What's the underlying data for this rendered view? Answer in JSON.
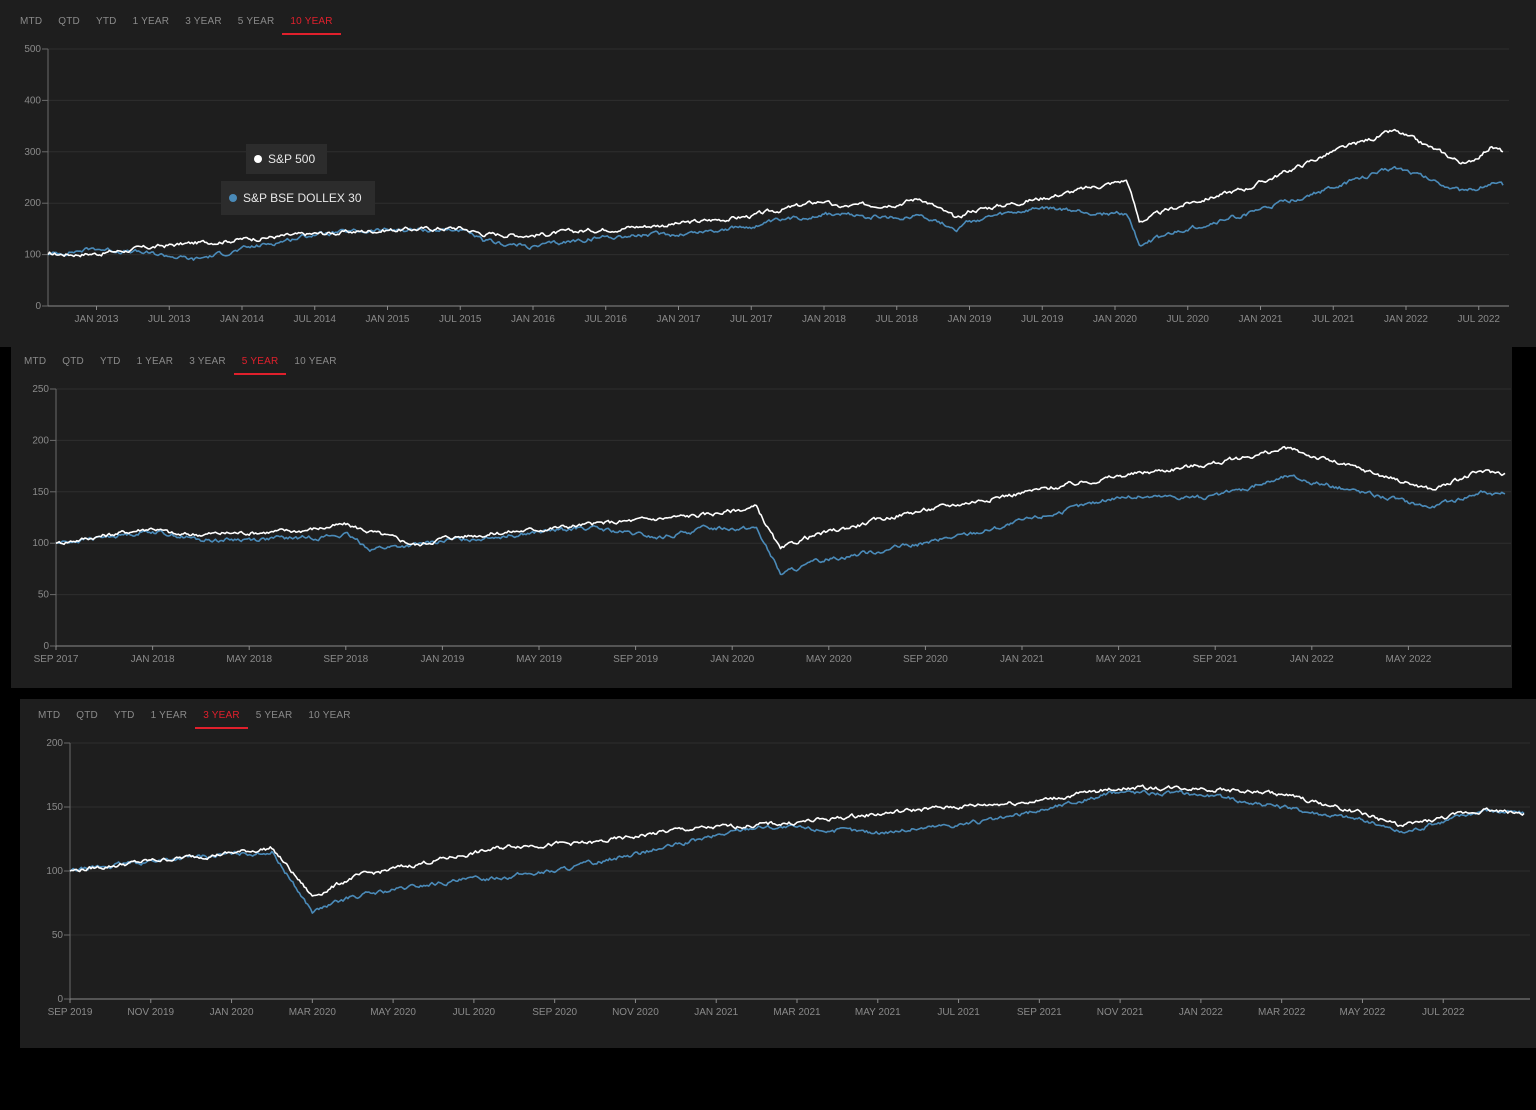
{
  "tabs": [
    "MTD",
    "QTD",
    "YTD",
    "1 YEAR",
    "3 YEAR",
    "5 YEAR",
    "10 YEAR"
  ],
  "colors": {
    "sp500": "#ffffff",
    "dollex": "#4a8ab8",
    "accent": "#e0202c",
    "grid": "#2f2f2f",
    "tick": "#8a8a8a"
  },
  "chart_data": [
    {
      "type": "line",
      "active_tab": "10 YEAR",
      "legend": "inline",
      "legend_items": [
        "S&P 500",
        "S&P BSE DOLLEX 30"
      ],
      "yticks": [
        0,
        100,
        200,
        300,
        400,
        500
      ],
      "ylim": [
        0,
        500
      ],
      "xlim": [
        "2012-09",
        "2022-09"
      ],
      "xticks": [
        "JAN 2013",
        "JUL 2013",
        "JAN 2014",
        "JUL 2014",
        "JAN 2015",
        "JUL 2015",
        "JAN 2016",
        "JUL 2016",
        "JAN 2017",
        "JUL 2017",
        "JAN 2018",
        "JUL 2018",
        "JAN 2019",
        "JUL 2019",
        "JAN 2020",
        "JUL 2020",
        "JAN 2021",
        "JUL 2021",
        "JAN 2022",
        "JUL 2022"
      ],
      "series": [
        {
          "name": "S&P 500",
          "color": "#ffffff",
          "points": [
            [
              "2012-09",
              100
            ],
            [
              "2013-01",
              102
            ],
            [
              "2013-07",
              118
            ],
            [
              "2014-01",
              130
            ],
            [
              "2014-07",
              140
            ],
            [
              "2015-01",
              148
            ],
            [
              "2015-07",
              152
            ],
            [
              "2015-09",
              140
            ],
            [
              "2016-01",
              138
            ],
            [
              "2016-07",
              150
            ],
            [
              "2017-01",
              160
            ],
            [
              "2017-07",
              175
            ],
            [
              "2018-01",
              205
            ],
            [
              "2018-02",
              192
            ],
            [
              "2018-07",
              200
            ],
            [
              "2018-09",
              210
            ],
            [
              "2018-12",
              168
            ],
            [
              "2019-01",
              185
            ],
            [
              "2019-07",
              210
            ],
            [
              "2019-12",
              235
            ],
            [
              "2020-02",
              245
            ],
            [
              "2020-03",
              165
            ],
            [
              "2020-07",
              200
            ],
            [
              "2020-12",
              230
            ],
            [
              "2021-07",
              300
            ],
            [
              "2021-12",
              340
            ],
            [
              "2022-01",
              330
            ],
            [
              "2022-06",
              275
            ],
            [
              "2022-08",
              310
            ],
            [
              "2022-09",
              300
            ]
          ]
        },
        {
          "name": "S&P BSE DOLLEX 30",
          "color": "#4a8ab8",
          "points": [
            [
              "2012-09",
              100
            ],
            [
              "2013-01",
              112
            ],
            [
              "2013-07",
              98
            ],
            [
              "2013-09",
              90
            ],
            [
              "2014-01",
              110
            ],
            [
              "2014-07",
              140
            ],
            [
              "2015-01",
              148
            ],
            [
              "2015-07",
              148
            ],
            [
              "2015-09",
              125
            ],
            [
              "2016-01",
              115
            ],
            [
              "2016-07",
              135
            ],
            [
              "2017-01",
              140
            ],
            [
              "2017-07",
              155
            ],
            [
              "2018-01",
              180
            ],
            [
              "2018-07",
              170
            ],
            [
              "2018-09",
              178
            ],
            [
              "2018-12",
              150
            ],
            [
              "2019-01",
              165
            ],
            [
              "2019-07",
              190
            ],
            [
              "2019-12",
              180
            ],
            [
              "2020-02",
              180
            ],
            [
              "2020-03",
              120
            ],
            [
              "2020-07",
              150
            ],
            [
              "2020-12",
              180
            ],
            [
              "2021-07",
              230
            ],
            [
              "2021-12",
              270
            ],
            [
              "2022-01",
              265
            ],
            [
              "2022-06",
              220
            ],
            [
              "2022-08",
              240
            ],
            [
              "2022-09",
              235
            ]
          ]
        }
      ]
    },
    {
      "type": "line",
      "active_tab": "5 YEAR",
      "yticks": [
        0,
        50,
        100,
        150,
        200,
        250
      ],
      "ylim": [
        0,
        250
      ],
      "xlim": [
        "2017-09",
        "2022-09"
      ],
      "xticks": [
        "SEP 2017",
        "JAN 2018",
        "MAY 2018",
        "SEP 2018",
        "JAN 2019",
        "MAY 2019",
        "SEP 2019",
        "JAN 2020",
        "MAY 2020",
        "SEP 2020",
        "JAN 2021",
        "MAY 2021",
        "SEP 2021",
        "JAN 2022",
        "MAY 2022"
      ],
      "series": [
        {
          "name": "S&P 500",
          "color": "#ffffff",
          "points": [
            [
              "2017-09",
              100
            ],
            [
              "2018-01",
              115
            ],
            [
              "2018-02",
              108
            ],
            [
              "2018-07",
              112
            ],
            [
              "2018-09",
              118
            ],
            [
              "2018-12",
              98
            ],
            [
              "2019-01",
              105
            ],
            [
              "2019-07",
              118
            ],
            [
              "2019-12",
              128
            ],
            [
              "2020-02",
              135
            ],
            [
              "2020-03",
              93
            ],
            [
              "2020-04",
              105
            ],
            [
              "2020-08",
              128
            ],
            [
              "2020-12",
              145
            ],
            [
              "2021-05",
              165
            ],
            [
              "2021-09",
              178
            ],
            [
              "2021-12",
              192
            ],
            [
              "2022-01",
              185
            ],
            [
              "2022-06",
              152
            ],
            [
              "2022-08",
              170
            ],
            [
              "2022-09",
              168
            ]
          ]
        },
        {
          "name": "S&P BSE DOLLEX 30",
          "color": "#4a8ab8",
          "points": [
            [
              "2017-09",
              100
            ],
            [
              "2018-01",
              112
            ],
            [
              "2018-03",
              103
            ],
            [
              "2018-07",
              105
            ],
            [
              "2018-09",
              108
            ],
            [
              "2018-10",
              95
            ],
            [
              "2018-12",
              98
            ],
            [
              "2019-01",
              102
            ],
            [
              "2019-07",
              115
            ],
            [
              "2019-10",
              105
            ],
            [
              "2019-12",
              115
            ],
            [
              "2020-02",
              115
            ],
            [
              "2020-03",
              70
            ],
            [
              "2020-05",
              85
            ],
            [
              "2020-09",
              100
            ],
            [
              "2020-12",
              115
            ],
            [
              "2021-05",
              145
            ],
            [
              "2021-09",
              145
            ],
            [
              "2021-12",
              165
            ],
            [
              "2022-01",
              160
            ],
            [
              "2022-06",
              135
            ],
            [
              "2022-08",
              150
            ],
            [
              "2022-09",
              148
            ]
          ]
        }
      ]
    },
    {
      "type": "line",
      "active_tab": "3 YEAR",
      "yticks": [
        0,
        50,
        100,
        150,
        200
      ],
      "ylim": [
        0,
        200
      ],
      "xlim": [
        "2019-09",
        "2022-09"
      ],
      "xticks": [
        "SEP 2019",
        "NOV 2019",
        "JAN 2020",
        "MAR 2020",
        "MAY 2020",
        "JUL 2020",
        "SEP 2020",
        "NOV 2020",
        "JAN 2021",
        "MAR 2021",
        "MAY 2021",
        "JUL 2021",
        "SEP 2021",
        "NOV 2021",
        "JAN 2022",
        "MAR 2022",
        "MAY 2022",
        "JUL 2022"
      ],
      "series": [
        {
          "name": "S&P 500",
          "color": "#ffffff",
          "points": [
            [
              "2019-09",
              100
            ],
            [
              "2019-11",
              108
            ],
            [
              "2020-01",
              114
            ],
            [
              "2020-02",
              118
            ],
            [
              "2020-03",
              80
            ],
            [
              "2020-04",
              95
            ],
            [
              "2020-06",
              108
            ],
            [
              "2020-08",
              120
            ],
            [
              "2020-10",
              122
            ],
            [
              "2020-12",
              132
            ],
            [
              "2021-03",
              138
            ],
            [
              "2021-06",
              148
            ],
            [
              "2021-09",
              155
            ],
            [
              "2021-11",
              165
            ],
            [
              "2022-01",
              165
            ],
            [
              "2022-03",
              160
            ],
            [
              "2022-05",
              145
            ],
            [
              "2022-06",
              135
            ],
            [
              "2022-08",
              148
            ],
            [
              "2022-09",
              145
            ]
          ]
        },
        {
          "name": "S&P BSE DOLLEX 30",
          "color": "#4a8ab8",
          "points": [
            [
              "2019-09",
              100
            ],
            [
              "2019-11",
              108
            ],
            [
              "2020-01",
              113
            ],
            [
              "2020-02",
              115
            ],
            [
              "2020-03",
              68
            ],
            [
              "2020-04",
              80
            ],
            [
              "2020-06",
              90
            ],
            [
              "2020-09",
              100
            ],
            [
              "2020-12",
              120
            ],
            [
              "2021-02",
              135
            ],
            [
              "2021-05",
              130
            ],
            [
              "2021-08",
              140
            ],
            [
              "2021-11",
              162
            ],
            [
              "2022-01",
              160
            ],
            [
              "2022-03",
              150
            ],
            [
              "2022-05",
              140
            ],
            [
              "2022-06",
              130
            ],
            [
              "2022-08",
              148
            ],
            [
              "2022-09",
              145
            ]
          ]
        }
      ]
    }
  ]
}
